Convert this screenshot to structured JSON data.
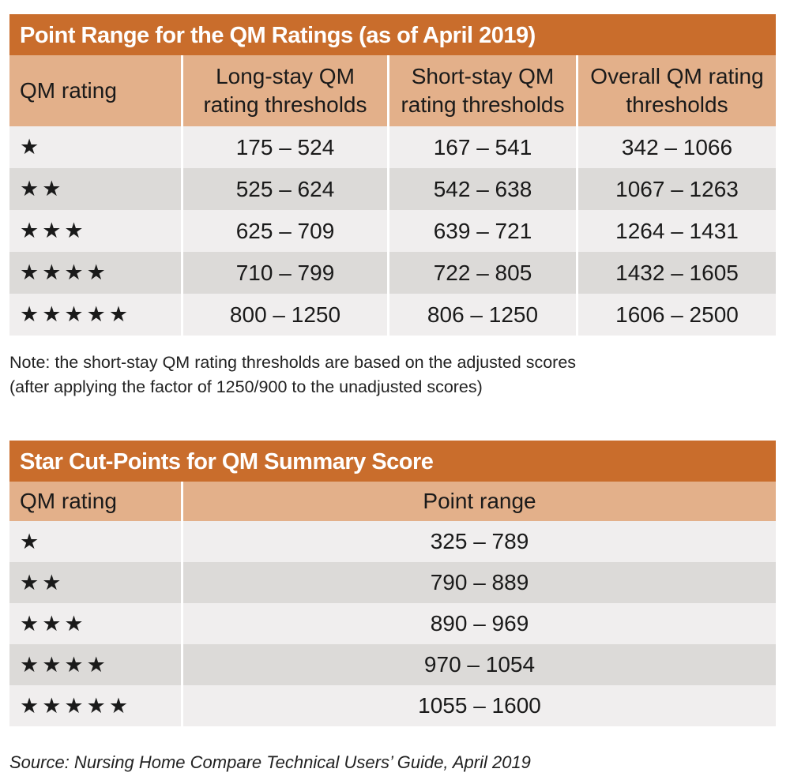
{
  "table1": {
    "title": "Point Range for the QM Ratings (as of April 2019)",
    "headers": [
      "QM rating",
      "Long-stay QM rating thresholds",
      "Short-stay QM rating thresholds",
      "Overall QM rating thresholds"
    ],
    "rows": [
      [
        "★",
        "175 – 524",
        "167 – 541",
        "342 – 1066"
      ],
      [
        "★★",
        "525 – 624",
        "542 – 638",
        "1067 – 1263"
      ],
      [
        "★★★",
        "625 – 709",
        "639 – 721",
        "1264 – 1431"
      ],
      [
        "★★★★",
        "710 – 799",
        "722 – 805",
        "1432 – 1605"
      ],
      [
        "★★★★★",
        "800 – 1250",
        "806 – 1250",
        "1606 – 2500"
      ]
    ]
  },
  "note": [
    "Note: the short-stay QM rating thresholds are based on the adjusted scores",
    "(after applying the factor of 1250/900 to the unadjusted scores)"
  ],
  "table2": {
    "title": "Star Cut-Points for QM Summary Score",
    "headers": [
      "QM rating",
      "Point range"
    ],
    "rows": [
      [
        "★",
        "325 – 789"
      ],
      [
        "★★",
        "790 – 889"
      ],
      [
        "★★★",
        "890 – 969"
      ],
      [
        "★★★★",
        "970 – 1054"
      ],
      [
        "★★★★★",
        "1055 – 1600"
      ]
    ]
  },
  "source": "Source: Nursing Home Compare Technical Users’ Guide, April 2019",
  "colors": {
    "title_bg": "#C96D2C",
    "header_bg": "#E3B08A",
    "row_light": "#F0EEEE",
    "row_dark": "#DCDAD8"
  }
}
